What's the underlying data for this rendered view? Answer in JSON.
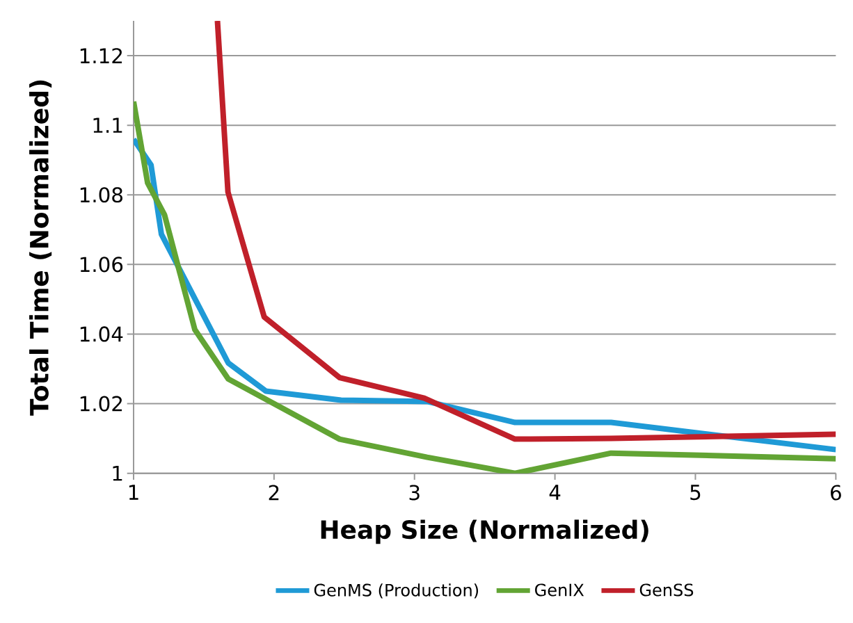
{
  "chart_data": {
    "type": "line",
    "xlabel": "Heap Size (Normalized)",
    "ylabel": "Total Time (Normalized)",
    "xlim": [
      1,
      6
    ],
    "ylim": [
      1,
      1.13
    ],
    "xticks": [
      1,
      2,
      3,
      4,
      5,
      6
    ],
    "yticks": [
      1,
      1.02,
      1.04,
      1.06,
      1.08,
      1.1,
      1.12
    ],
    "grid": "y",
    "legend": "bottom",
    "marker": "none",
    "line_style": "solid",
    "series": [
      {
        "name": "GenMS (Production)",
        "color": "#1f9ad6",
        "x": [
          1,
          1.124,
          1.198,
          1.674,
          1.942,
          2.477,
          3.096,
          3.716,
          4.4,
          6
        ],
        "values": [
          1.096,
          1.0886,
          1.0687,
          1.0317,
          1.0236,
          1.021,
          1.0206,
          1.0146,
          1.0146,
          1.0068
        ]
      },
      {
        "name": "GenIX",
        "color": "#62a434",
        "x": [
          1,
          1.1,
          1.22,
          1.436,
          1.674,
          2.467,
          3.09,
          3.716,
          4.4,
          6
        ],
        "values": [
          1.1068,
          1.0834,
          1.0743,
          1.0413,
          1.0271,
          1.0098,
          1.0046,
          1.0,
          1.0058,
          1.0042
        ]
      },
      {
        "name": "GenSS",
        "color": "#c0202a",
        "x": [
          1.597,
          1.672,
          1.93,
          2.467,
          3.07,
          3.716,
          4.4,
          6
        ],
        "values": [
          1.13,
          1.0808,
          1.0449,
          1.0275,
          1.0216,
          1.0098,
          1.01,
          1.0112
        ]
      }
    ]
  }
}
